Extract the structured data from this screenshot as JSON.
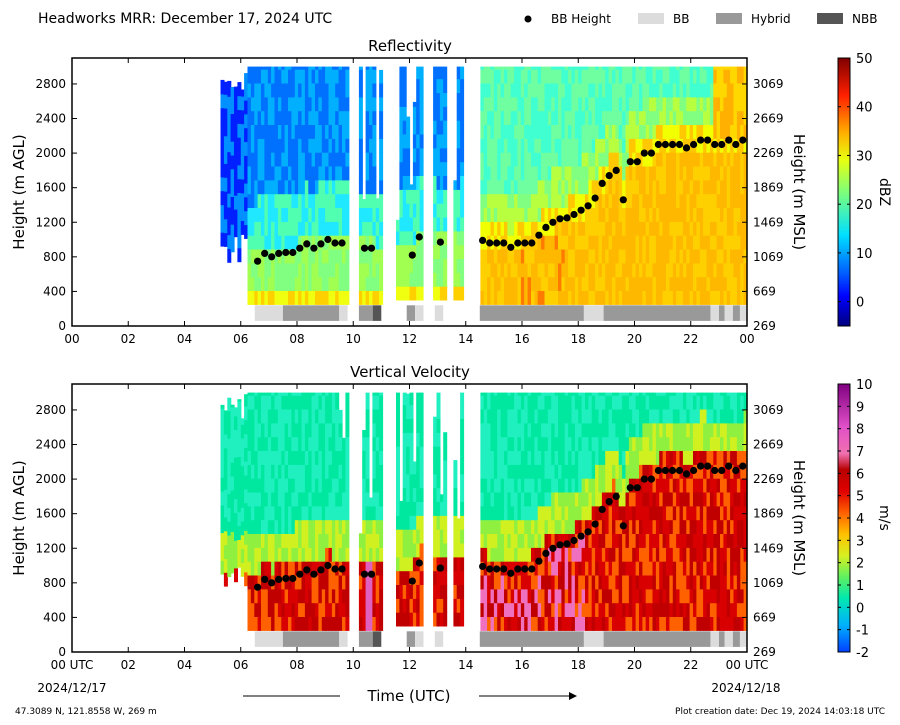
{
  "figure": {
    "title": "Headworks MRR:  December 17, 2024 UTC",
    "footer_location": "47.3089 N, 121.8558 W, 269 m",
    "footer_created": "Plot creation date: Dec 19, 2024 14:03:18 UTC",
    "time_axis_label": "Time (UTC)",
    "date_start": "2024/12/17",
    "date_end": "2024/12/18"
  },
  "legend": [
    {
      "label": "BB Height",
      "marker": "dot",
      "color": "#000000"
    },
    {
      "label": "BB",
      "marker": "box",
      "color": "#dcdcdc"
    },
    {
      "label": "Hybrid",
      "marker": "box",
      "color": "#999999"
    },
    {
      "label": "NBB",
      "marker": "box",
      "color": "#555555"
    }
  ],
  "chart_data": [
    {
      "type": "heatmap",
      "title": "Reflectivity",
      "xlabel": "",
      "ylabel": "Height (m AGL)",
      "ylabel_right": "Height (m MSL)",
      "xlim": [
        0,
        24
      ],
      "ylim": [
        0,
        3100
      ],
      "x_ticks": [
        "00",
        "02",
        "04",
        "06",
        "08",
        "10",
        "12",
        "14",
        "16",
        "18",
        "20",
        "22",
        "00"
      ],
      "y_ticks": [
        0,
        400,
        800,
        1200,
        1600,
        2000,
        2400,
        2800
      ],
      "y_ticks_right": [
        269,
        669,
        1069,
        1469,
        1869,
        2269,
        2669,
        3069
      ],
      "colorbar": {
        "label": "dBZ",
        "min": -5,
        "max": 50,
        "ticks": [
          0,
          10,
          20,
          30,
          40,
          50
        ]
      }
    },
    {
      "type": "heatmap",
      "title": "Vertical Velocity",
      "xlabel": "Time (UTC)",
      "ylabel": "Height (m AGL)",
      "ylabel_right": "Height (m MSL)",
      "xlim": [
        0,
        24
      ],
      "ylim": [
        0,
        3100
      ],
      "x_ticks": [
        "00 UTC",
        "02",
        "04",
        "06",
        "08",
        "10",
        "12",
        "14",
        "16",
        "18",
        "20",
        "22",
        "00 UTC"
      ],
      "y_ticks": [
        0,
        400,
        800,
        1200,
        1600,
        2000,
        2400,
        2800
      ],
      "y_ticks_right": [
        269,
        669,
        1069,
        1469,
        1869,
        2269,
        2669,
        3069
      ],
      "colorbar": {
        "label": "m/s",
        "min": -2,
        "max": 10,
        "ticks": [
          -2,
          -1,
          0,
          1,
          2,
          3,
          4,
          5,
          6,
          7,
          8,
          9,
          10
        ]
      }
    }
  ],
  "bb_height": {
    "times": [
      6.6,
      6.85,
      7.1,
      7.35,
      7.6,
      7.85,
      8.1,
      8.35,
      8.6,
      8.85,
      9.1,
      9.35,
      9.6,
      10.4,
      10.65,
      12.1,
      12.35,
      13.1,
      14.6,
      14.85,
      15.1,
      15.35,
      15.6,
      15.85,
      16.1,
      16.35,
      16.6,
      16.85,
      17.1,
      17.35,
      17.6,
      17.85,
      18.1,
      18.35,
      18.6,
      18.85,
      19.1,
      19.35,
      19.6,
      19.85,
      20.1,
      20.35,
      20.6,
      20.85,
      21.1,
      21.35,
      21.6,
      21.85,
      22.1,
      22.35,
      22.6,
      22.85,
      23.1,
      23.35,
      23.6,
      23.85
    ],
    "heights": [
      750,
      840,
      800,
      840,
      850,
      850,
      900,
      950,
      900,
      950,
      1000,
      960,
      960,
      900,
      900,
      820,
      1030,
      970,
      990,
      960,
      960,
      960,
      910,
      960,
      960,
      960,
      1050,
      1140,
      1200,
      1240,
      1250,
      1290,
      1340,
      1390,
      1480,
      1650,
      1740,
      1800,
      1460,
      1900,
      1900,
      2000,
      2000,
      2100,
      2100,
      2100,
      2100,
      2060,
      2100,
      2150,
      2150,
      2100,
      2100,
      2150,
      2100,
      2150
    ]
  },
  "bb_type_strip": [
    {
      "start": 6.5,
      "end": 7.5,
      "kind": "BB"
    },
    {
      "start": 7.5,
      "end": 9.5,
      "kind": "Hybrid"
    },
    {
      "start": 9.5,
      "end": 9.8,
      "kind": "BB"
    },
    {
      "start": 10.2,
      "end": 10.7,
      "kind": "Hybrid"
    },
    {
      "start": 10.7,
      "end": 11.0,
      "kind": "NBB"
    },
    {
      "start": 11.9,
      "end": 12.2,
      "kind": "Hybrid"
    },
    {
      "start": 12.2,
      "end": 12.5,
      "kind": "BB"
    },
    {
      "start": 12.9,
      "end": 13.2,
      "kind": "BB"
    },
    {
      "start": 14.5,
      "end": 18.2,
      "kind": "Hybrid"
    },
    {
      "start": 18.2,
      "end": 18.9,
      "kind": "BB"
    },
    {
      "start": 18.9,
      "end": 22.7,
      "kind": "Hybrid"
    },
    {
      "start": 22.7,
      "end": 23.0,
      "kind": "BB"
    },
    {
      "start": 23.0,
      "end": 23.2,
      "kind": "Hybrid"
    },
    {
      "start": 23.2,
      "end": 23.5,
      "kind": "BB"
    },
    {
      "start": 23.5,
      "end": 23.75,
      "kind": "Hybrid"
    },
    {
      "start": 23.75,
      "end": 24.0,
      "kind": "BB"
    }
  ],
  "echo_periods": [
    [
      5.0,
      5.05
    ],
    [
      5.3,
      9.8
    ],
    [
      10.2,
      11.0
    ],
    [
      11.5,
      12.5
    ],
    [
      12.8,
      13.3
    ],
    [
      13.6,
      13.9
    ],
    [
      14.5,
      24.0
    ]
  ]
}
